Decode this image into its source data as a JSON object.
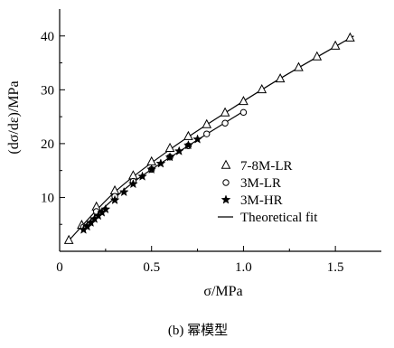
{
  "caption": "(b) 幂模型",
  "chart_data": {
    "type": "scatter",
    "title": "",
    "xlabel": "σ/MPa",
    "ylabel": "(dσ/dε)/MPa",
    "xlim": [
      0,
      1.75
    ],
    "ylim": [
      0,
      45
    ],
    "xticks": [
      "0",
      "0.5",
      "1.0",
      "1.5"
    ],
    "xtick_values": [
      0,
      0.5,
      1.0,
      1.5
    ],
    "yticks": [
      "10",
      "20",
      "30",
      "40"
    ],
    "ytick_values": [
      10,
      20,
      30,
      40
    ],
    "grid": false,
    "legend_position": "right-center",
    "series": [
      {
        "name": "7-8M-LR",
        "marker": "triangle",
        "x": [
          0.05,
          0.12,
          0.2,
          0.3,
          0.4,
          0.5,
          0.6,
          0.7,
          0.8,
          0.9,
          1.0,
          1.1,
          1.2,
          1.3,
          1.4,
          1.5,
          1.58
        ],
        "y": [
          2.0,
          4.8,
          8.2,
          11.2,
          14.0,
          16.6,
          19.1,
          21.3,
          23.5,
          25.7,
          27.8,
          30.0,
          32.0,
          34.1,
          36.1,
          38.1,
          39.6
        ]
      },
      {
        "name": "3M-LR",
        "marker": "circle",
        "x": [
          0.13,
          0.2,
          0.3,
          0.4,
          0.5,
          0.6,
          0.7,
          0.8,
          0.9,
          1.0
        ],
        "y": [
          4.5,
          7.4,
          10.2,
          13.0,
          15.2,
          17.5,
          19.6,
          21.8,
          23.8,
          25.8
        ]
      },
      {
        "name": "3M-HR",
        "marker": "star",
        "x": [
          0.13,
          0.15,
          0.17,
          0.19,
          0.21,
          0.23,
          0.25,
          0.3,
          0.35,
          0.4,
          0.45,
          0.5,
          0.55,
          0.6,
          0.65,
          0.7,
          0.75
        ],
        "y": [
          4.0,
          4.6,
          5.3,
          6.0,
          6.6,
          7.2,
          7.8,
          9.5,
          11.0,
          12.5,
          13.9,
          15.2,
          16.3,
          17.5,
          18.6,
          19.7,
          20.8
        ]
      },
      {
        "name": "Theoretical fit",
        "marker": "line",
        "curves": [
          {
            "x": [
              0.05,
              0.3,
              0.6,
              0.9,
              1.2,
              1.6
            ],
            "y": [
              2.0,
              11.0,
              18.9,
              25.7,
              32.1,
              40.0
            ]
          },
          {
            "x": [
              0.12,
              0.4,
              0.7,
              1.0
            ],
            "y": [
              4.3,
              12.8,
              19.6,
              26.0
            ]
          }
        ]
      }
    ]
  }
}
